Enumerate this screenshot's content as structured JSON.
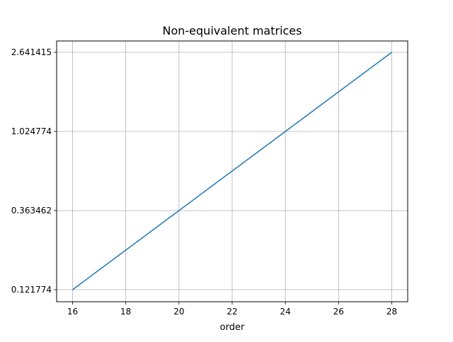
{
  "chart_data": {
    "type": "line",
    "title": "Non-equivalent matrices",
    "xlabel": "order",
    "ylabel": "",
    "grid": true,
    "x_ticks": [
      16,
      18,
      20,
      22,
      24,
      26,
      28
    ],
    "y_tick_labels": [
      "0.121774",
      "0.363462",
      "1.024774",
      "2.641415"
    ],
    "series": [
      {
        "color": "#1f77b4",
        "points": [
          {
            "x": 16,
            "y": 0.121774
          },
          {
            "x": 28,
            "y": 2.641415
          }
        ]
      }
    ]
  }
}
